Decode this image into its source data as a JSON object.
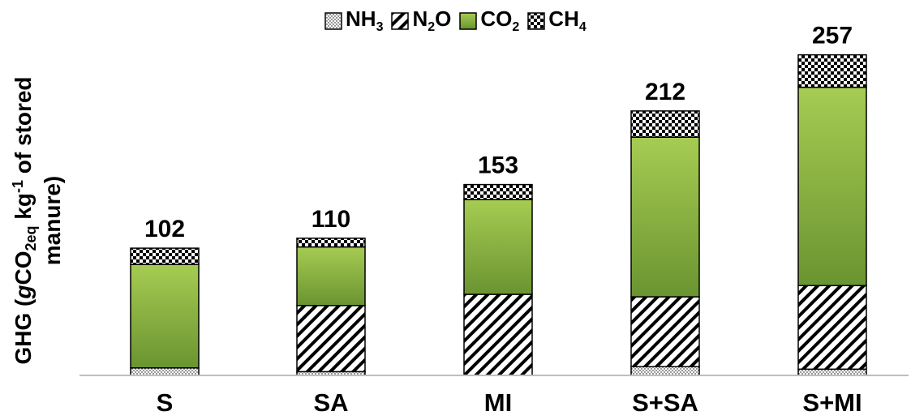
{
  "chart_data": {
    "type": "bar",
    "stacked": true,
    "categories": [
      "S",
      "SA",
      "MI",
      "S+SA",
      "S+MI"
    ],
    "series": [
      {
        "name": "NH₃",
        "name_base": "NH",
        "name_sub": "3",
        "pattern": "dots",
        "values": [
          6,
          3,
          0,
          7,
          5
        ]
      },
      {
        "name": "N₂O",
        "name_base": "N",
        "name_sub": "2",
        "name_tail": "O",
        "pattern": "hatch",
        "values": [
          0,
          53,
          65,
          56,
          67
        ]
      },
      {
        "name": "CO₂",
        "name_base": "CO",
        "name_sub": "2",
        "pattern": "green",
        "values": [
          83,
          47,
          76,
          128,
          159
        ]
      },
      {
        "name": "CH₄",
        "name_base": "CH",
        "name_sub": "4",
        "pattern": "checker",
        "values": [
          13,
          7,
          12,
          21,
          26
        ]
      }
    ],
    "totals": [
      "102",
      "110",
      "153",
      "212",
      "257"
    ],
    "ylabel": {
      "prefix": "GHG  (",
      "g": "g",
      "co": "CO",
      "sub": "2eq",
      "kg": " kg",
      "sup": "-1",
      "suffix": " of stored",
      "line2": "manure)"
    },
    "ylim": [
      0,
      260
    ],
    "grid": false,
    "legend_position": "top-center",
    "colors": {
      "green_top": "#a6cc52",
      "green_bottom": "#6a9431",
      "stroke": "#000000",
      "axis": "#bfbfbf"
    }
  }
}
